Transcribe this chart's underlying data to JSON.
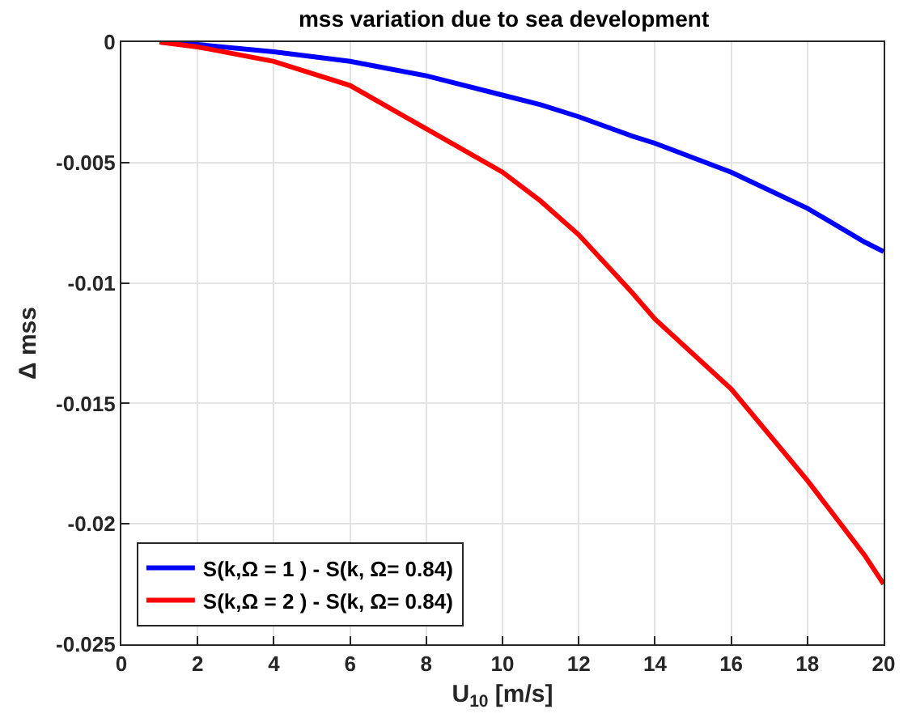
{
  "chart_data": {
    "type": "line",
    "title": "mss variation due to sea development",
    "xlabel": "U$_{10}$ [m/s]",
    "ylabel": "Δ mss",
    "x": [
      1,
      2,
      4,
      6,
      7,
      8,
      10,
      11,
      12,
      13.4,
      14,
      16,
      18,
      19.5,
      20
    ],
    "series": [
      {
        "name": "S(k,Ω = 1 ) - S(k, Ω= 0.84)",
        "color": "#0000ff",
        "values": [
          0,
          -0.0001,
          -0.0004,
          -0.0008,
          -0.0011,
          -0.0014,
          -0.0022,
          -0.0026,
          -0.0031,
          -0.0039,
          -0.0042,
          -0.0054,
          -0.0069,
          -0.0083,
          -0.0087
        ]
      },
      {
        "name": "S(k,Ω = 2 ) - S(k, Ω= 0.84)",
        "color": "#ff0000",
        "values": [
          0,
          -0.0002,
          -0.0008,
          -0.0018,
          -0.0027,
          -0.0036,
          -0.0054,
          -0.0066,
          -0.008,
          -0.0104,
          -0.0115,
          -0.0144,
          -0.0182,
          -0.0213,
          -0.0225
        ]
      }
    ],
    "xlim": [
      0,
      20
    ],
    "xticks": [
      0,
      2,
      4,
      6,
      8,
      10,
      12,
      14,
      16,
      18,
      20
    ],
    "ylim": [
      -0.025,
      0
    ],
    "yticks": [
      -0.025,
      -0.02,
      -0.015,
      -0.01,
      -0.005,
      0
    ],
    "grid": true,
    "legend": "bottom left",
    "line_style": "solid",
    "marker": "none"
  }
}
